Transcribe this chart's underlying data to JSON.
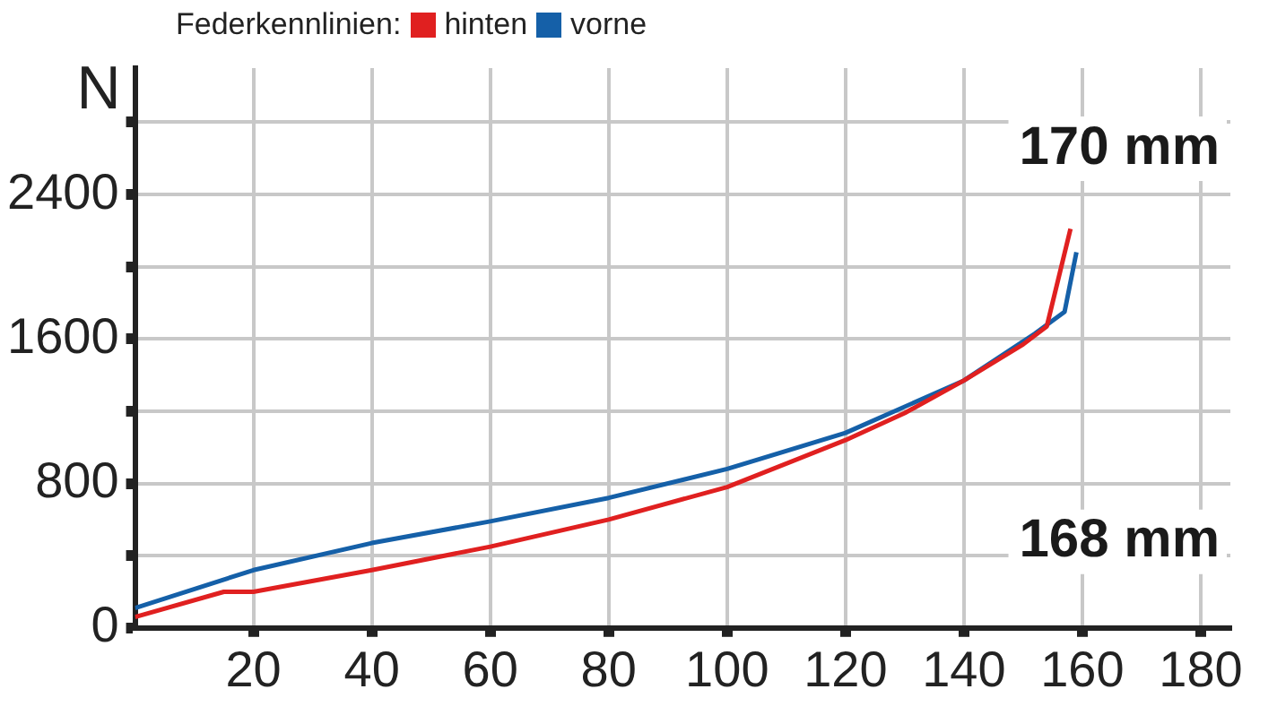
{
  "chart_data": {
    "type": "line",
    "ylabel": "N",
    "legend_title": "Federkennlinien:",
    "legend": "top left",
    "grid": true,
    "marker": "none",
    "line_style": "solid",
    "annotations": [
      "170 mm",
      "168 mm"
    ],
    "xlim": [
      0,
      185
    ],
    "xticks": [
      20,
      40,
      60,
      80,
      100,
      120,
      140,
      160,
      180
    ],
    "ylim": [
      0,
      3100
    ],
    "yticks": [
      0,
      {
        "value": 400,
        "label": null
      },
      800,
      {
        "value": 1200,
        "label": null
      },
      1600,
      {
        "value": 2000,
        "label": null
      },
      2400,
      {
        "value": 2800,
        "label": null
      }
    ],
    "series": [
      {
        "name": "hinten",
        "color": "#e02020",
        "x": [
          0,
          15,
          20,
          40,
          60,
          80,
          100,
          120,
          130,
          140,
          150,
          154,
          158
        ],
        "values": [
          60,
          200,
          200,
          320,
          450,
          600,
          780,
          1040,
          1190,
          1370,
          1570,
          1670,
          2210
        ]
      },
      {
        "name": "vorne",
        "color": "#1560a8",
        "x": [
          0,
          20,
          40,
          60,
          80,
          100,
          120,
          140,
          152,
          157,
          159
        ],
        "values": [
          110,
          320,
          470,
          590,
          720,
          880,
          1080,
          1370,
          1630,
          1750,
          2080
        ]
      }
    ]
  }
}
